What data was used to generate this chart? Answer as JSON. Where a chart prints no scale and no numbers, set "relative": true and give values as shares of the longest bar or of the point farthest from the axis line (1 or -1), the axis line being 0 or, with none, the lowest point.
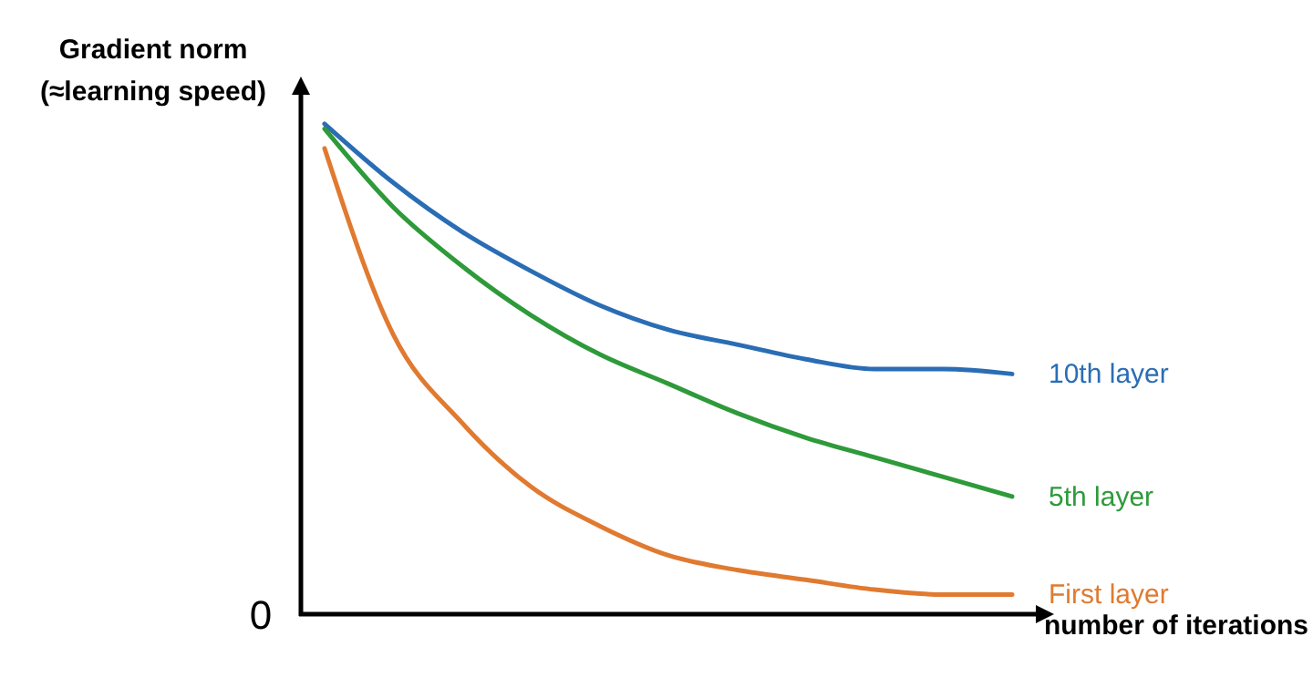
{
  "chart_data": {
    "type": "line",
    "relative": true,
    "xlabel": "number of iterations",
    "ylabel": "Gradient norm\n(≈learning speed)",
    "annotations": [
      "0"
    ],
    "legend": false,
    "categories": [
      null,
      null,
      null,
      null,
      null,
      null,
      null,
      null,
      null,
      null,
      null
    ],
    "series": [
      {
        "name": "10th layer",
        "color": "#2a6db5",
        "values": [
          1,
          0.88,
          0.78,
          0.7,
          0.63,
          0.58,
          0.55,
          0.52,
          0.5,
          0.5,
          0.49
        ]
      },
      {
        "name": "5th layer",
        "color": "#2e9a3a",
        "values": [
          0.99,
          0.83,
          0.71,
          0.61,
          0.53,
          0.47,
          0.41,
          0.36,
          0.32,
          0.28,
          0.24
        ]
      },
      {
        "name": "First layer",
        "color": "#e07a30",
        "values": [
          0.95,
          0.57,
          0.39,
          0.26,
          0.18,
          0.12,
          0.09,
          0.07,
          0.05,
          0.04,
          0.04
        ]
      }
    ]
  }
}
